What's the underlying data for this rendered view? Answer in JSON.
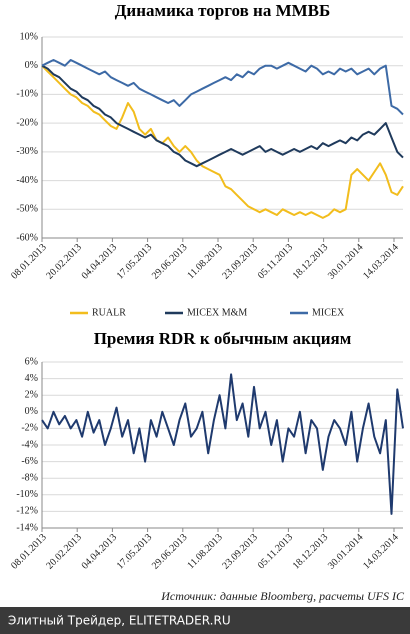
{
  "chart_data": [
    {
      "type": "line",
      "title": "Динамика торгов на ММВБ",
      "x": [
        "2013-01-08",
        "2013-01-15",
        "2013-01-22",
        "2013-01-29",
        "2013-02-05",
        "2013-02-12",
        "2013-02-19",
        "2013-02-26",
        "2013-03-05",
        "2013-03-12",
        "2013-03-19",
        "2013-03-26",
        "2013-04-02",
        "2013-04-09",
        "2013-04-16",
        "2013-04-23",
        "2013-04-30",
        "2013-05-07",
        "2013-05-14",
        "2013-05-21",
        "2013-05-28",
        "2013-06-04",
        "2013-06-11",
        "2013-06-18",
        "2013-06-25",
        "2013-07-02",
        "2013-07-09",
        "2013-07-16",
        "2013-07-23",
        "2013-07-30",
        "2013-08-06",
        "2013-08-13",
        "2013-08-20",
        "2013-08-27",
        "2013-09-03",
        "2013-09-10",
        "2013-09-17",
        "2013-09-24",
        "2013-10-01",
        "2013-10-08",
        "2013-10-15",
        "2013-10-22",
        "2013-10-29",
        "2013-11-05",
        "2013-11-12",
        "2013-11-19",
        "2013-11-26",
        "2013-12-03",
        "2013-12-10",
        "2013-12-17",
        "2013-12-24",
        "2013-12-31",
        "2014-01-07",
        "2014-01-14",
        "2014-01-21",
        "2014-01-28",
        "2014-02-04",
        "2014-02-11",
        "2014-02-18",
        "2014-02-25",
        "2014-03-04",
        "2014-03-11",
        "2014-03-18",
        "2014-03-25"
      ],
      "series": [
        {
          "name": "RUALR",
          "color": "#f2bd1d",
          "values": [
            0,
            -2,
            -4,
            -6,
            -8,
            -10,
            -11,
            -13,
            -14,
            -16,
            -17,
            -19,
            -21,
            -22,
            -18,
            -13,
            -16,
            -22,
            -24,
            -22,
            -26,
            -27,
            -25,
            -28,
            -30,
            -28,
            -30,
            -33,
            -35,
            -36,
            -37,
            -38,
            -42,
            -43,
            -45,
            -47,
            -49,
            -50,
            -51,
            -50,
            -51,
            -52,
            -50,
            -51,
            -52,
            -51,
            -52,
            -51,
            -52,
            -53,
            -52,
            -50,
            -51,
            -50,
            -38,
            -36,
            -38,
            -40,
            -37,
            -34,
            -38,
            -44,
            -45,
            -42
          ]
        },
        {
          "name": "MICEX M&M",
          "color": "#1f3a5c",
          "values": [
            0,
            -1,
            -3,
            -4,
            -6,
            -8,
            -9,
            -11,
            -12,
            -14,
            -15,
            -17,
            -18,
            -20,
            -21,
            -22,
            -23,
            -24,
            -25,
            -24,
            -26,
            -27,
            -28,
            -30,
            -31,
            -33,
            -34,
            -35,
            -34,
            -33,
            -32,
            -31,
            -30,
            -29,
            -30,
            -31,
            -30,
            -29,
            -28,
            -30,
            -29,
            -30,
            -31,
            -30,
            -29,
            -30,
            -29,
            -28,
            -29,
            -27,
            -28,
            -27,
            -26,
            -27,
            -25,
            -26,
            -24,
            -23,
            -24,
            -22,
            -20,
            -25,
            -30,
            -32
          ]
        },
        {
          "name": "MICEX",
          "color": "#3d6aa6",
          "values": [
            0,
            1,
            2,
            1,
            0,
            2,
            1,
            0,
            -1,
            -2,
            -3,
            -2,
            -4,
            -5,
            -6,
            -7,
            -6,
            -8,
            -9,
            -10,
            -11,
            -12,
            -13,
            -12,
            -14,
            -12,
            -10,
            -9,
            -8,
            -7,
            -6,
            -5,
            -4,
            -5,
            -3,
            -4,
            -2,
            -3,
            -1,
            0,
            0,
            -1,
            0,
            1,
            0,
            -1,
            -2,
            0,
            -1,
            -3,
            -2,
            -3,
            -1,
            -2,
            -1,
            -3,
            -2,
            -1,
            -3,
            -1,
            0,
            -14,
            -15,
            -17
          ]
        }
      ],
      "xlim": [
        "2013-01-08",
        "2014-03-25"
      ],
      "xticks": [
        {
          "value": "2013-01-08",
          "label": "08.01.2013"
        },
        {
          "value": "2013-02-20",
          "label": "20.02.2013"
        },
        {
          "value": "2013-04-04",
          "label": "04.04.2013"
        },
        {
          "value": "2013-05-17",
          "label": "17.05.2013"
        },
        {
          "value": "2013-06-29",
          "label": "29.06.2013"
        },
        {
          "value": "2013-08-11",
          "label": "11.08.2013"
        },
        {
          "value": "2013-09-23",
          "label": "23.09.2013"
        },
        {
          "value": "2013-11-05",
          "label": "05.11.2013"
        },
        {
          "value": "2013-12-18",
          "label": "18.12.2013"
        },
        {
          "value": "2014-01-30",
          "label": "30.01.2014"
        },
        {
          "value": "2014-03-14",
          "label": "14.03.2014"
        }
      ],
      "ylim": [
        -60,
        10
      ],
      "yticks": [
        {
          "value": -60,
          "label": "-60%"
        },
        {
          "value": -50,
          "label": "-50%"
        },
        {
          "value": -40,
          "label": "-40%"
        },
        {
          "value": -30,
          "label": "-30%"
        },
        {
          "value": -20,
          "label": "-20%"
        },
        {
          "value": -10,
          "label": "-10%"
        },
        {
          "value": 0,
          "label": "0%"
        },
        {
          "value": 10,
          "label": "10%"
        }
      ],
      "grid": true,
      "legend": "bottom"
    },
    {
      "type": "line",
      "title": "Премия RDR к обычным акциям",
      "x": [
        "2013-01-08",
        "2013-01-15",
        "2013-01-22",
        "2013-01-29",
        "2013-02-05",
        "2013-02-12",
        "2013-02-19",
        "2013-02-26",
        "2013-03-05",
        "2013-03-12",
        "2013-03-19",
        "2013-03-26",
        "2013-04-02",
        "2013-04-09",
        "2013-04-16",
        "2013-04-23",
        "2013-04-30",
        "2013-05-07",
        "2013-05-14",
        "2013-05-21",
        "2013-05-28",
        "2013-06-04",
        "2013-06-11",
        "2013-06-18",
        "2013-06-25",
        "2013-07-02",
        "2013-07-09",
        "2013-07-16",
        "2013-07-23",
        "2013-07-30",
        "2013-08-06",
        "2013-08-13",
        "2013-08-20",
        "2013-08-27",
        "2013-09-03",
        "2013-09-10",
        "2013-09-17",
        "2013-09-24",
        "2013-10-01",
        "2013-10-08",
        "2013-10-15",
        "2013-10-22",
        "2013-10-29",
        "2013-11-05",
        "2013-11-12",
        "2013-11-19",
        "2013-11-26",
        "2013-12-03",
        "2013-12-10",
        "2013-12-17",
        "2013-12-24",
        "2013-12-31",
        "2014-01-07",
        "2014-01-14",
        "2014-01-21",
        "2014-01-28",
        "2014-02-04",
        "2014-02-11",
        "2014-02-18",
        "2014-02-25",
        "2014-03-04",
        "2014-03-11",
        "2014-03-18",
        "2014-03-25"
      ],
      "series": [
        {
          "color": "#1f3a6e",
          "values": [
            -1,
            -2,
            0,
            -1.5,
            -0.5,
            -2,
            -1,
            -3,
            0,
            -2.5,
            -1,
            -4,
            -2,
            0.5,
            -3,
            -1,
            -5,
            -2,
            -6,
            -1,
            -3,
            0,
            -2,
            -4,
            -1,
            1,
            -3,
            -2,
            0,
            -5,
            -1,
            2,
            -2,
            4.5,
            -1,
            1,
            -3,
            3,
            -2,
            0,
            -4,
            -1,
            -6,
            -2,
            -3,
            0,
            -5,
            -1,
            -2,
            -7,
            -3,
            -1,
            -2,
            -4,
            0,
            -6,
            -2,
            1,
            -3,
            -5,
            -1,
            -12.3,
            2.7,
            -2
          ]
        }
      ],
      "xlim": [
        "2013-01-08",
        "2014-03-25"
      ],
      "xticks": [
        {
          "value": "2013-01-08",
          "label": "08.01.2013"
        },
        {
          "value": "2013-02-20",
          "label": "20.02.2013"
        },
        {
          "value": "2013-04-04",
          "label": "04.04.2013"
        },
        {
          "value": "2013-05-17",
          "label": "17.05.2013"
        },
        {
          "value": "2013-06-29",
          "label": "29.06.2013"
        },
        {
          "value": "2013-08-11",
          "label": "11.08.2013"
        },
        {
          "value": "2013-09-23",
          "label": "23.09.2013"
        },
        {
          "value": "2013-11-05",
          "label": "05.11.2013"
        },
        {
          "value": "2013-12-18",
          "label": "18.12.2013"
        },
        {
          "value": "2014-01-30",
          "label": "30.01.2014"
        },
        {
          "value": "2014-03-14",
          "label": "14.03.2014"
        }
      ],
      "ylim": [
        -14,
        6
      ],
      "yticks": [
        {
          "value": -14,
          "label": "-14%"
        },
        {
          "value": -12,
          "label": "-12%"
        },
        {
          "value": -10,
          "label": "-10%"
        },
        {
          "value": -8,
          "label": "-8%"
        },
        {
          "value": -6,
          "label": "-6%"
        },
        {
          "value": -4,
          "label": "-4%"
        },
        {
          "value": -2,
          "label": "-2%"
        },
        {
          "value": 0,
          "label": "0%"
        },
        {
          "value": 2,
          "label": "2%"
        },
        {
          "value": 4,
          "label": "4%"
        },
        {
          "value": 6,
          "label": "6%"
        }
      ],
      "grid": true
    }
  ],
  "footer": {
    "source": "Источник: данные Bloomberg, расчеты UFS IC",
    "watermark": "Элитный Трейдер, ELITETRADER.RU"
  }
}
